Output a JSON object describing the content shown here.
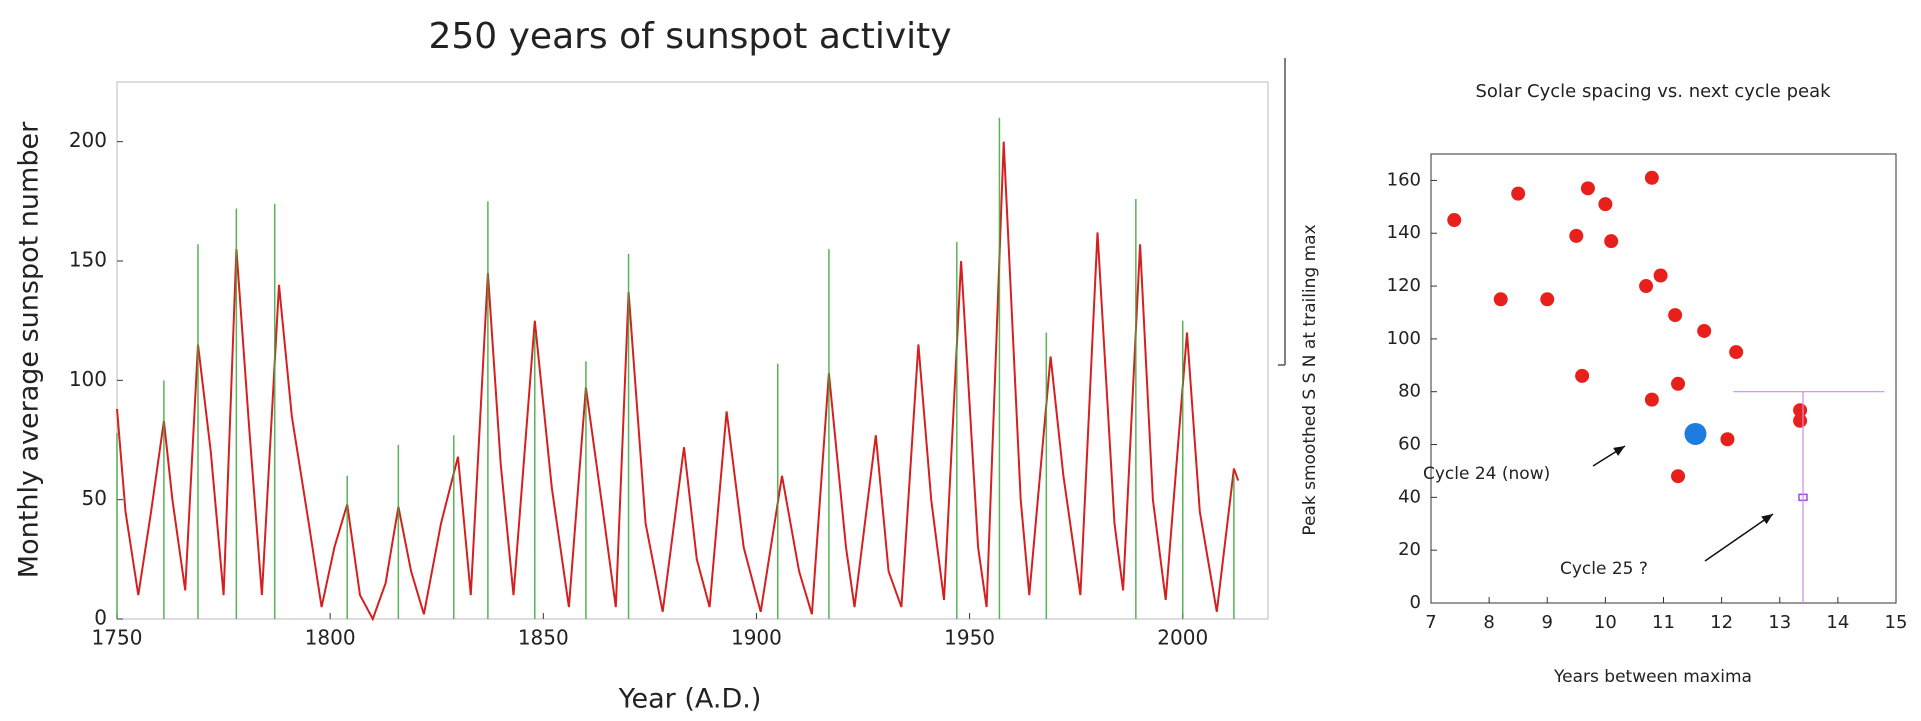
{
  "chart_data": [
    {
      "type": "line",
      "title": "250 years of sunspot activity",
      "x_label": "Year (A.D.)",
      "y_label": "Monthly average sunspot number",
      "xlim": [
        1750,
        2020
      ],
      "xticks": [
        1750,
        1800,
        1850,
        1900,
        1950,
        2000
      ],
      "ylim": [
        0,
        225
      ],
      "yticks": [
        0,
        50,
        100,
        150,
        200
      ],
      "series": [
        {
          "mark": "line",
          "color": "#d62020",
          "x": [
            1750,
            1752,
            1755,
            1758,
            1761,
            1763,
            1766,
            1769,
            1772,
            1775,
            1778,
            1781,
            1784,
            1788,
            1791,
            1795,
            1798,
            1801,
            1804,
            1807,
            1810,
            1813,
            1816,
            1819,
            1822,
            1826,
            1830,
            1833,
            1837,
            1840,
            1843,
            1848,
            1852,
            1856,
            1860,
            1864,
            1867,
            1870,
            1874,
            1878,
            1883,
            1886,
            1889,
            1893,
            1897,
            1901,
            1906,
            1910,
            1913,
            1917,
            1921,
            1923,
            1928,
            1931,
            1934,
            1938,
            1941,
            1944,
            1948,
            1952,
            1954,
            1958,
            1962,
            1964,
            1969,
            1972,
            1976,
            1980,
            1984,
            1986,
            1990,
            1993,
            1996,
            2001,
            2004,
            2008,
            2012,
            2013
          ],
          "values": [
            88,
            45,
            10,
            45,
            83,
            50,
            12,
            115,
            70,
            10,
            155,
            80,
            10,
            140,
            85,
            40,
            5,
            30,
            48,
            10,
            0,
            15,
            47,
            20,
            2,
            40,
            68,
            10,
            145,
            65,
            10,
            125,
            55,
            5,
            97,
            45,
            5,
            137,
            40,
            3,
            72,
            25,
            5,
            87,
            30,
            3,
            60,
            20,
            2,
            103,
            30,
            5,
            77,
            20,
            5,
            115,
            50,
            8,
            150,
            30,
            5,
            200,
            50,
            10,
            110,
            60,
            10,
            162,
            40,
            12,
            157,
            50,
            8,
            120,
            45,
            3,
            63,
            58
          ]
        },
        {
          "mark": "spike",
          "color": "#3aa83a",
          "x": [
            1750,
            1761,
            1769,
            1778,
            1787,
            1804,
            1816,
            1829,
            1837,
            1848,
            1860,
            1870,
            1905,
            1917,
            1947,
            1957,
            1968,
            1989,
            2000,
            2012
          ],
          "values": [
            78,
            100,
            157,
            172,
            174,
            60,
            73,
            77,
            175,
            120,
            108,
            153,
            107,
            155,
            158,
            210,
            120,
            176,
            125,
            60
          ]
        }
      ]
    },
    {
      "type": "scatter",
      "title": "Solar Cycle spacing vs. next cycle peak",
      "x_label": "Years between maxima",
      "y_label": "Peak smoothed S S N at trailing max",
      "xlim": [
        7,
        15
      ],
      "xticks": [
        7,
        8,
        9,
        10,
        11,
        12,
        13,
        14,
        15
      ],
      "ylim": [
        0,
        170
      ],
      "yticks": [
        0,
        20,
        40,
        60,
        80,
        100,
        120,
        140,
        160
      ],
      "annotations": [
        "Cycle 24 (now)",
        "Cycle 25 ?"
      ],
      "series": [
        {
          "mark": "dot",
          "color": "#e8201c",
          "x": [
            7.4,
            8.2,
            8.5,
            9.0,
            9.5,
            9.7,
            9.6,
            10.0,
            10.1,
            10.8,
            10.7,
            10.95,
            10.8,
            11.2,
            11.25,
            11.25,
            11.7,
            12.25,
            12.1,
            13.35,
            13.35
          ],
          "values": [
            145,
            115,
            155,
            115,
            139,
            157,
            86,
            151,
            137,
            161,
            120,
            124,
            77,
            109,
            83,
            48,
            103,
            95,
            62,
            73,
            69
          ]
        },
        {
          "mark": "big-dot",
          "color": "#1e7be0",
          "x": [
            11.55
          ],
          "values": [
            64
          ]
        },
        {
          "mark": "square",
          "color": "#a04be0",
          "x": [
            13.4
          ],
          "values": [
            40
          ]
        },
        {
          "mark": "line",
          "color": "#d08ae8",
          "x": [
            12.2,
            14.8
          ],
          "values": [
            80,
            80
          ]
        },
        {
          "mark": "line",
          "color": "#d08ae8",
          "x": [
            13.4,
            13.4
          ],
          "values": [
            0,
            80
          ]
        }
      ]
    }
  ]
}
